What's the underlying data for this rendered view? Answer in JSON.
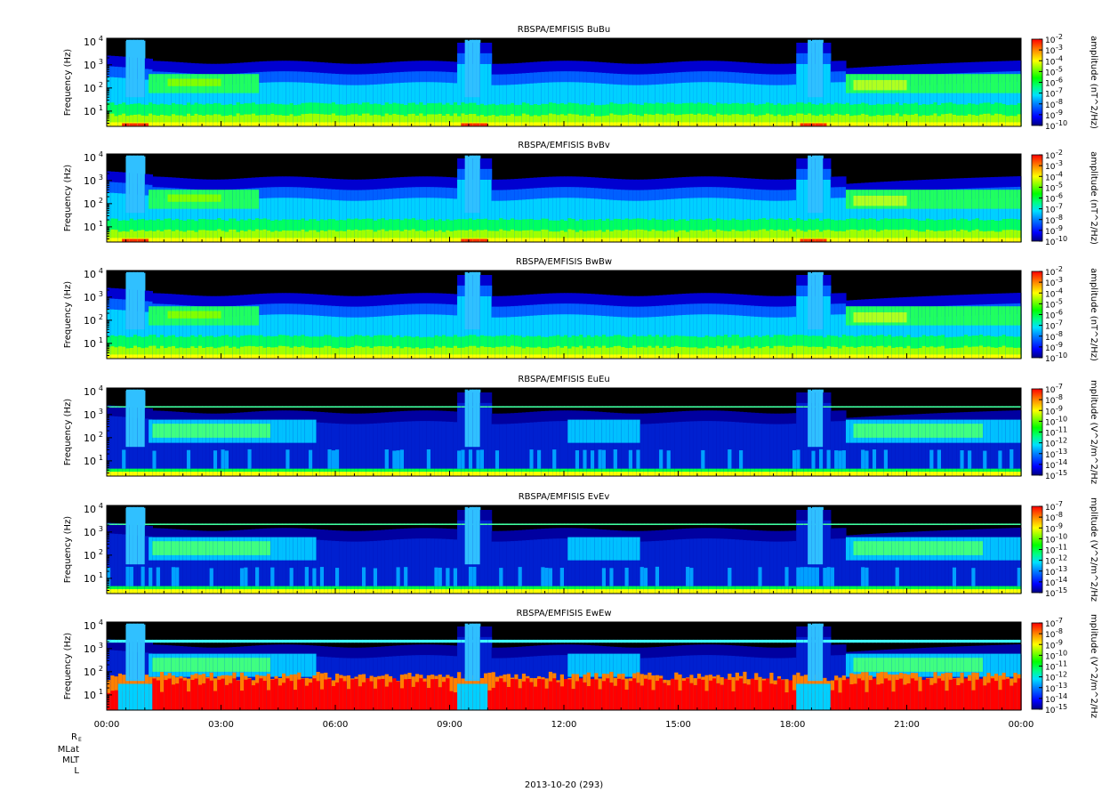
{
  "chart_data": {
    "type": "heatmap",
    "date_label": "2013-10-20 (293)",
    "x_ticks": [
      "00:00",
      "03:00",
      "06:00",
      "09:00",
      "12:00",
      "15:00",
      "18:00",
      "21:00",
      "00:00"
    ],
    "x_range_hours": [
      0,
      24
    ],
    "ephemeris_labels": [
      "R_E",
      "MLat",
      "MLT",
      "L"
    ],
    "ylabel": "Frequency (Hz)",
    "y_scale": "log",
    "y_ticks": [
      {
        "exp": "1",
        "value": 10
      },
      {
        "exp": "2",
        "value": 100
      },
      {
        "exp": "3",
        "value": 1000
      },
      {
        "exp": "4",
        "value": 10000
      }
    ],
    "colormap": [
      "#000080",
      "#0000ff",
      "#0080ff",
      "#00e0ff",
      "#00ff80",
      "#00ff00",
      "#80ff00",
      "#ffff00",
      "#ff8000",
      "#ff0000"
    ],
    "panels": [
      {
        "title": "RBSPA/EMFISIS  BuBu",
        "kind": "B",
        "cbar_label": "amplitude (nT^2/Hz)",
        "cbar_exps": [
          "-2",
          "-3",
          "-4",
          "-5",
          "-6",
          "-7",
          "-8",
          "-9",
          "-10"
        ]
      },
      {
        "title": "RBSPA/EMFISIS  BvBv",
        "kind": "B",
        "cbar_label": "amplitude (nT^2/Hz)",
        "cbar_exps": [
          "-2",
          "-3",
          "-4",
          "-5",
          "-6",
          "-7",
          "-8",
          "-9",
          "-10"
        ]
      },
      {
        "title": "RBSPA/EMFISIS  BwBw",
        "kind": "B",
        "cbar_label": "amplitude (nT^2/Hz)",
        "cbar_exps": [
          "-2",
          "-3",
          "-4",
          "-5",
          "-6",
          "-7",
          "-8",
          "-9",
          "-10"
        ]
      },
      {
        "title": "RBSPA/EMFISIS  EuEu",
        "kind": "E",
        "cbar_label": "mplitude (V^2/m^2/Hz",
        "cbar_exps": [
          "-7",
          "-8",
          "-9",
          "-10",
          "-11",
          "-12",
          "-13",
          "-14",
          "-15"
        ]
      },
      {
        "title": "RBSPA/EMFISIS  EvEv",
        "kind": "E",
        "cbar_label": "mplitude (V^2/m^2/Hz",
        "cbar_exps": [
          "-7",
          "-8",
          "-9",
          "-10",
          "-11",
          "-12",
          "-13",
          "-14",
          "-15"
        ]
      },
      {
        "title": "RBSPA/EMFISIS  EwEw",
        "kind": "Ew",
        "cbar_label": "mplitude (V^2/m^2/Hz",
        "cbar_exps": [
          "-7",
          "-8",
          "-9",
          "-10",
          "-11",
          "-12",
          "-13",
          "-14",
          "-15"
        ]
      }
    ]
  }
}
